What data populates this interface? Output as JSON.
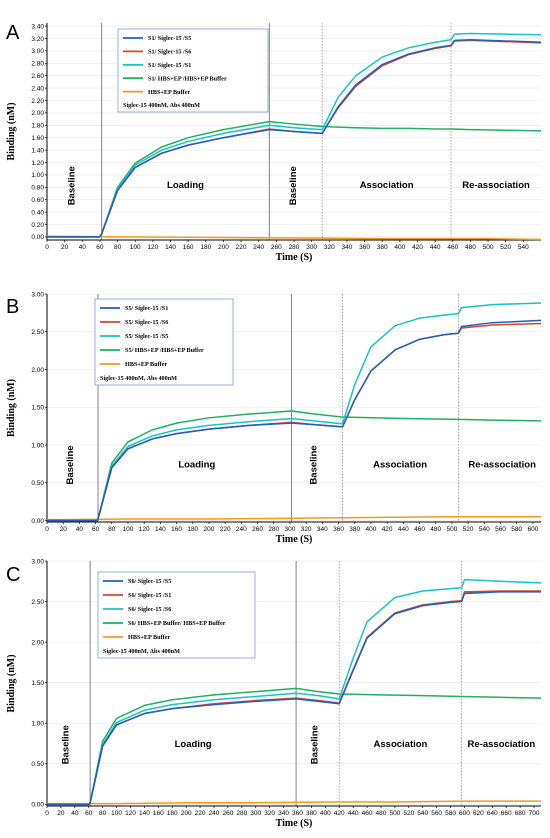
{
  "chart_data": [
    {
      "type": "line",
      "panel_label": "A",
      "xlabel": "Time (S)",
      "ylabel": "Binding (nM)",
      "xlim": [
        0,
        560
      ],
      "ylim": [
        -0.05,
        3.45
      ],
      "x_ticks": [
        0,
        20,
        40,
        60,
        80,
        100,
        120,
        140,
        160,
        180,
        200,
        220,
        240,
        260,
        280,
        300,
        320,
        340,
        360,
        380,
        400,
        420,
        440,
        460,
        480,
        500,
        520,
        540
      ],
      "y_ticks": [
        "0.00",
        "0.20",
        "0.40",
        "0.60",
        "0.80",
        "1.00",
        "1.20",
        "1.40",
        "1.60",
        "1.80",
        "2.00",
        "2.20",
        "2.40",
        "2.60",
        "2.80",
        "3.00",
        "3.20",
        "3.40"
      ],
      "phase_lines_solid": [
        62,
        252
      ],
      "phase_lines_dotted": [
        312,
        458
      ],
      "phases": [
        {
          "label": "Baseline",
          "x": 31,
          "vertical": true
        },
        {
          "label": "Loading",
          "x": 157,
          "vertical": false
        },
        {
          "label": "Baseline",
          "x": 282,
          "vertical": true
        },
        {
          "label": "Association",
          "x": 385,
          "vertical": false
        },
        {
          "label": "Re-association",
          "x": 509,
          "vertical": false
        }
      ],
      "legend": {
        "entries": [
          "S1/ Siglec-15 /S5",
          "S1/ Siglec-15 /S6",
          "S1/ Siglec-15 /S1",
          "S1/ HBS+EP /HBS+EP Buffer",
          "HBS+EP Buffer"
        ],
        "note": "Siglec-15 400nM, Abs 400nM"
      },
      "series_colors": [
        "#1f5fbf",
        "#d8452a",
        "#17c3c9",
        "#20b060",
        "#f39a1e"
      ],
      "series": [
        {
          "name": "S1/ Siglec-15 /S5",
          "x": [
            0,
            60,
            62,
            80,
            100,
            130,
            160,
            200,
            252,
            280,
            312,
            330,
            350,
            380,
            410,
            440,
            458,
            462,
            480,
            520,
            560
          ],
          "values": [
            0,
            0,
            0.05,
            0.75,
            1.12,
            1.35,
            1.48,
            1.6,
            1.73,
            1.7,
            1.67,
            2.1,
            2.45,
            2.78,
            2.95,
            3.05,
            3.09,
            3.17,
            3.18,
            3.16,
            3.14
          ]
        },
        {
          "name": "S1/ Siglec-15 /S6",
          "x": [
            0,
            60,
            62,
            80,
            100,
            130,
            160,
            200,
            252,
            280,
            312,
            330,
            350,
            380,
            410,
            440,
            458,
            462,
            480,
            520,
            560
          ],
          "values": [
            0,
            0,
            0.05,
            0.75,
            1.12,
            1.35,
            1.48,
            1.6,
            1.74,
            1.7,
            1.67,
            2.08,
            2.43,
            2.76,
            2.94,
            3.04,
            3.08,
            3.16,
            3.17,
            3.15,
            3.13
          ]
        },
        {
          "name": "S1/ Siglec-15 /S1",
          "x": [
            0,
            60,
            62,
            80,
            100,
            130,
            160,
            200,
            252,
            280,
            312,
            330,
            350,
            380,
            410,
            440,
            458,
            462,
            480,
            520,
            560
          ],
          "values": [
            0,
            0,
            0.05,
            0.78,
            1.16,
            1.4,
            1.54,
            1.67,
            1.8,
            1.76,
            1.73,
            2.25,
            2.6,
            2.9,
            3.05,
            3.14,
            3.18,
            3.27,
            3.28,
            3.27,
            3.26
          ]
        },
        {
          "name": "S1/ HBS+EP /HBS+EP Buffer",
          "x": [
            0,
            60,
            62,
            80,
            100,
            130,
            160,
            200,
            252,
            280,
            312,
            330,
            350,
            380,
            410,
            440,
            458,
            480,
            520,
            560
          ],
          "values": [
            0,
            0,
            0.05,
            0.8,
            1.19,
            1.45,
            1.6,
            1.73,
            1.86,
            1.82,
            1.78,
            1.77,
            1.76,
            1.75,
            1.75,
            1.74,
            1.74,
            1.73,
            1.72,
            1.71
          ]
        },
        {
          "name": "HBS+EP Buffer",
          "x": [
            0,
            100,
            200,
            300,
            400,
            500,
            560
          ],
          "values": [
            0.01,
            0.0,
            -0.01,
            -0.02,
            -0.03,
            -0.03,
            -0.04
          ]
        }
      ]
    },
    {
      "type": "line",
      "panel_label": "B",
      "xlabel": "Time (S)",
      "ylabel": "Binding (nM)",
      "xlim": [
        0,
        610
      ],
      "ylim": [
        -0.02,
        3.0
      ],
      "x_ticks": [
        0,
        20,
        40,
        60,
        80,
        100,
        120,
        140,
        160,
        180,
        200,
        220,
        240,
        260,
        280,
        300,
        320,
        340,
        360,
        380,
        400,
        420,
        440,
        460,
        480,
        500,
        520,
        540,
        560,
        580,
        600
      ],
      "y_ticks": [
        "0.00",
        "0.50",
        "1.00",
        "1.50",
        "2.00",
        "2.50",
        "3.00"
      ],
      "phase_lines_solid": [
        63,
        302
      ],
      "phase_lines_dotted": [
        365,
        508
      ],
      "phases": [
        {
          "label": "Baseline",
          "x": 32,
          "vertical": true
        },
        {
          "label": "Loading",
          "x": 185,
          "vertical": false
        },
        {
          "label": "Baseline",
          "x": 333,
          "vertical": true
        },
        {
          "label": "Association",
          "x": 436,
          "vertical": false
        },
        {
          "label": "Re-association",
          "x": 562,
          "vertical": false
        }
      ],
      "legend": {
        "entries": [
          "S5/ Siglec-15 /S1",
          "S5/ Siglec-15 /S6",
          "S5/ Siglec-15 /S5",
          "S5/ HBS+EP /HBS+EP Buffer",
          "HBS+EP Buffer"
        ],
        "note": "Siglec-15 400nM, Abs 400nM"
      },
      "series_colors": [
        "#1f5fbf",
        "#d8452a",
        "#17c3c9",
        "#20b060",
        "#f39a1e"
      ],
      "series": [
        {
          "name": "S5/ Siglec-15 /S1",
          "x": [
            0,
            62,
            63,
            80,
            100,
            130,
            160,
            200,
            250,
            302,
            330,
            365,
            380,
            400,
            430,
            460,
            490,
            508,
            512,
            550,
            610
          ],
          "values": [
            0,
            0,
            0.02,
            0.7,
            0.95,
            1.08,
            1.15,
            1.21,
            1.26,
            1.29,
            1.27,
            1.24,
            1.6,
            1.98,
            2.26,
            2.4,
            2.46,
            2.48,
            2.57,
            2.62,
            2.65
          ]
        },
        {
          "name": "S5/ Siglec-15 /S6",
          "x": [
            0,
            62,
            63,
            80,
            100,
            130,
            160,
            200,
            250,
            302,
            330,
            365,
            380,
            400,
            430,
            460,
            490,
            508,
            512,
            550,
            610
          ],
          "values": [
            0,
            0,
            0.02,
            0.7,
            0.95,
            1.08,
            1.15,
            1.21,
            1.26,
            1.3,
            1.27,
            1.24,
            1.6,
            1.98,
            2.26,
            2.4,
            2.46,
            2.48,
            2.55,
            2.59,
            2.61
          ]
        },
        {
          "name": "S5/ Siglec-15 /S5",
          "x": [
            0,
            62,
            63,
            80,
            100,
            130,
            160,
            200,
            250,
            302,
            330,
            365,
            380,
            400,
            430,
            460,
            490,
            508,
            512,
            550,
            610
          ],
          "values": [
            0,
            0,
            0.02,
            0.72,
            0.98,
            1.12,
            1.2,
            1.26,
            1.31,
            1.35,
            1.32,
            1.28,
            1.8,
            2.3,
            2.58,
            2.68,
            2.72,
            2.74,
            2.82,
            2.86,
            2.88
          ]
        },
        {
          "name": "S5/ HBS+EP /HBS+EP Buffer",
          "x": [
            0,
            62,
            63,
            80,
            100,
            130,
            160,
            200,
            250,
            302,
            330,
            365,
            400,
            450,
            508,
            550,
            610
          ],
          "values": [
            0,
            0,
            0.02,
            0.76,
            1.04,
            1.2,
            1.29,
            1.36,
            1.41,
            1.45,
            1.41,
            1.37,
            1.36,
            1.35,
            1.34,
            1.33,
            1.32
          ]
        },
        {
          "name": "HBS+EP Buffer",
          "x": [
            0,
            100,
            200,
            300,
            400,
            500,
            610
          ],
          "values": [
            0.01,
            0.02,
            0.02,
            0.03,
            0.04,
            0.05,
            0.05
          ]
        }
      ]
    },
    {
      "type": "line",
      "panel_label": "C",
      "xlabel": "Time (S)",
      "ylabel": "Binding (nM)",
      "xlim": [
        0,
        710
      ],
      "ylim": [
        -0.02,
        3.0
      ],
      "x_ticks": [
        0,
        20,
        40,
        60,
        80,
        100,
        120,
        140,
        160,
        180,
        200,
        220,
        240,
        260,
        280,
        300,
        320,
        340,
        360,
        380,
        400,
        420,
        440,
        460,
        480,
        500,
        520,
        540,
        560,
        580,
        600,
        620,
        640,
        660,
        680,
        700
      ],
      "y_ticks": [
        "0.00",
        "0.50",
        "1.00",
        "1.50",
        "2.00",
        "2.50",
        "3.00"
      ],
      "phase_lines_solid": [
        62,
        358
      ],
      "phase_lines_dotted": [
        420,
        596
      ],
      "phases": [
        {
          "label": "Baseline",
          "x": 31,
          "vertical": true
        },
        {
          "label": "Loading",
          "x": 210,
          "vertical": false
        },
        {
          "label": "Baseline",
          "x": 389,
          "vertical": true
        },
        {
          "label": "Association",
          "x": 508,
          "vertical": false
        },
        {
          "label": "Re-association",
          "x": 653,
          "vertical": false
        }
      ],
      "legend": {
        "entries": [
          "S6/ Siglec-15 /S5",
          "S6/ Siglec-15 /S1",
          "S6/ Siglec-15 /S6",
          "S6/ HBS+EP Buffer/ HBS+EP Buffer",
          "HBS+EP Buffer"
        ],
        "note": "Siglec-15 400nM, Abs 400nM"
      },
      "series_colors": [
        "#1f5fbf",
        "#d8452a",
        "#17c3c9",
        "#20b060",
        "#f39a1e"
      ],
      "series": [
        {
          "name": "S6/ Siglec-15 /S5",
          "x": [
            0,
            60,
            62,
            80,
            100,
            140,
            180,
            240,
            300,
            358,
            390,
            420,
            440,
            460,
            500,
            540,
            580,
            596,
            600,
            650,
            710
          ],
          "values": [
            0,
            0,
            0.02,
            0.72,
            0.98,
            1.12,
            1.18,
            1.23,
            1.27,
            1.3,
            1.27,
            1.24,
            1.65,
            2.05,
            2.35,
            2.45,
            2.49,
            2.5,
            2.6,
            2.62,
            2.62
          ]
        },
        {
          "name": "S6/ Siglec-15 /S1",
          "x": [
            0,
            60,
            62,
            80,
            100,
            140,
            180,
            240,
            300,
            358,
            390,
            420,
            440,
            460,
            500,
            540,
            580,
            596,
            600,
            650,
            710
          ],
          "values": [
            0,
            0,
            0.02,
            0.72,
            0.98,
            1.12,
            1.18,
            1.24,
            1.28,
            1.31,
            1.28,
            1.25,
            1.66,
            2.06,
            2.36,
            2.46,
            2.5,
            2.51,
            2.62,
            2.63,
            2.63
          ]
        },
        {
          "name": "S6/ Siglec-15 /S6",
          "x": [
            0,
            60,
            62,
            80,
            100,
            140,
            180,
            240,
            300,
            358,
            390,
            420,
            440,
            460,
            500,
            540,
            580,
            596,
            600,
            650,
            710
          ],
          "values": [
            0,
            0,
            0.02,
            0.74,
            1.01,
            1.16,
            1.23,
            1.29,
            1.33,
            1.37,
            1.34,
            1.3,
            1.8,
            2.25,
            2.55,
            2.63,
            2.66,
            2.67,
            2.77,
            2.75,
            2.73
          ]
        },
        {
          "name": "S6/ HBS+EP Buffer/ HBS+EP Buffer",
          "x": [
            0,
            60,
            62,
            80,
            100,
            140,
            180,
            240,
            300,
            358,
            390,
            420,
            480,
            540,
            596,
            650,
            710
          ],
          "values": [
            0,
            0,
            0.02,
            0.78,
            1.06,
            1.22,
            1.29,
            1.35,
            1.39,
            1.43,
            1.39,
            1.36,
            1.35,
            1.34,
            1.33,
            1.32,
            1.31
          ]
        },
        {
          "name": "HBS+EP Buffer",
          "x": [
            0,
            100,
            200,
            300,
            400,
            500,
            600,
            710
          ],
          "values": [
            0.01,
            0.01,
            0.02,
            0.02,
            0.03,
            0.03,
            0.04,
            0.04
          ]
        }
      ]
    }
  ]
}
